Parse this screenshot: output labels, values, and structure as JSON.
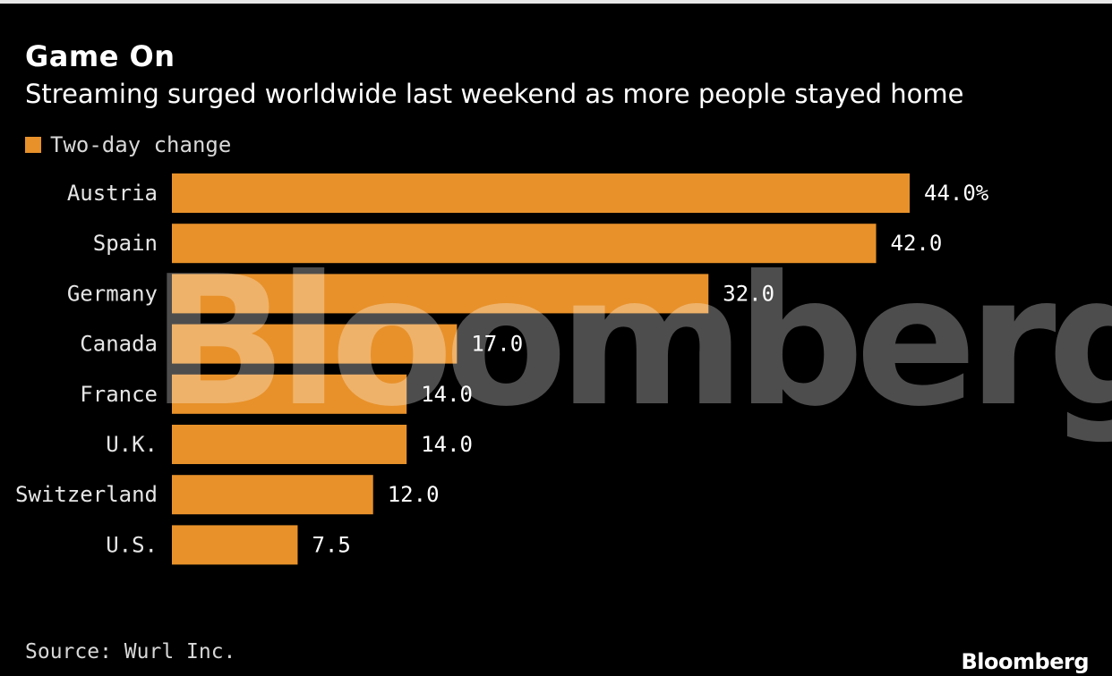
{
  "header": {
    "title": "Game On",
    "subtitle": "Streaming surged worldwide last weekend as more people stayed home"
  },
  "legend": {
    "label": "Two-day change"
  },
  "watermark": "Bloomberg",
  "footer": {
    "source": "Source: Wurl Inc.",
    "logo": "Bloomberg"
  },
  "colors": {
    "background": "#000000",
    "bar": "#e8912a"
  },
  "chart_data": {
    "type": "bar",
    "orientation": "horizontal",
    "categories": [
      "Austria",
      "Spain",
      "Germany",
      "Canada",
      "France",
      "U.K.",
      "Switzerland",
      "U.S."
    ],
    "values": [
      44.0,
      42.0,
      32.0,
      17.0,
      14.0,
      14.0,
      12.0,
      7.5
    ],
    "value_labels": [
      "44.0%",
      "42.0",
      "32.0",
      "17.0",
      "14.0",
      "14.0",
      "12.0",
      "7.5"
    ],
    "series": [
      {
        "name": "Two-day change",
        "values": [
          44.0,
          42.0,
          32.0,
          17.0,
          14.0,
          14.0,
          12.0,
          7.5
        ]
      }
    ],
    "xlim": [
      0,
      44
    ],
    "grid": false,
    "legend_position": "top-left"
  }
}
